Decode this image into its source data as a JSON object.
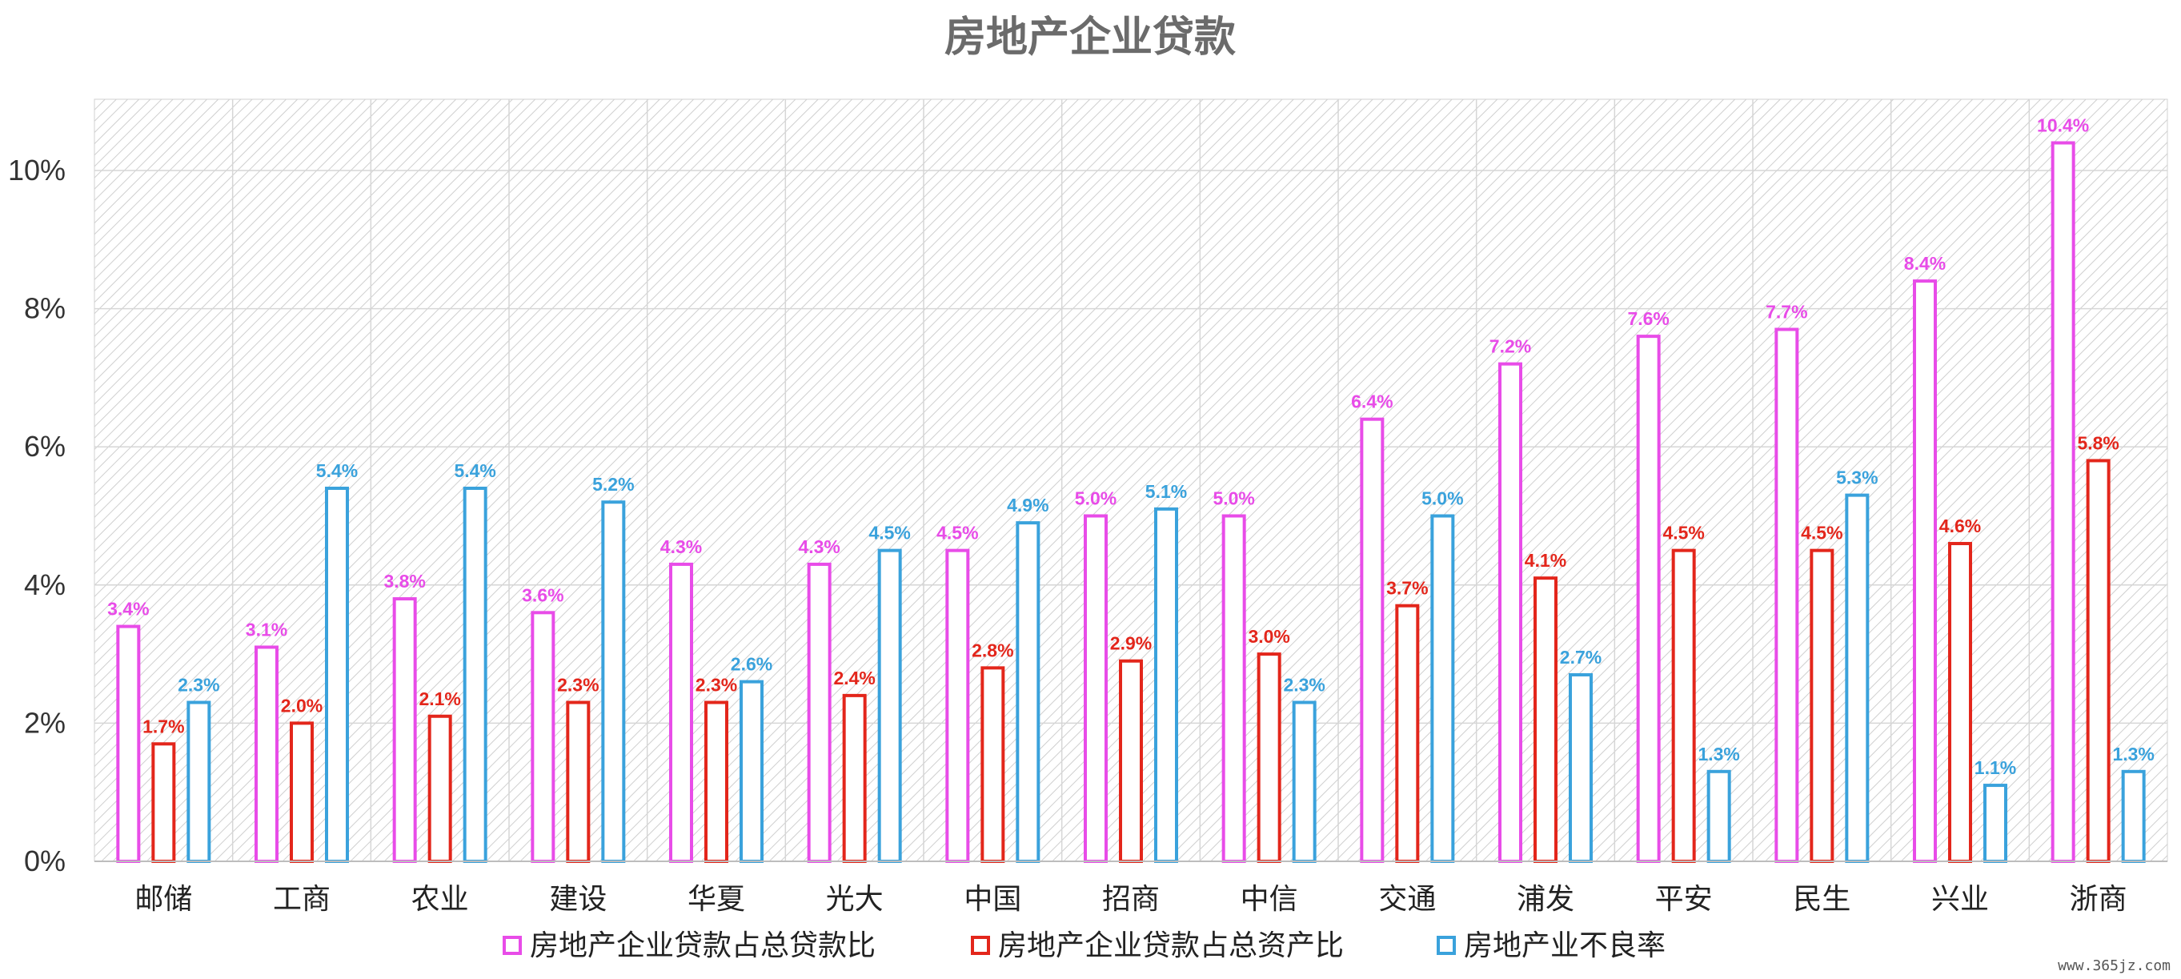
{
  "chart_data": {
    "type": "bar",
    "title": "房地产企业贷款",
    "categories": [
      "邮储",
      "工商",
      "农业",
      "建设",
      "华夏",
      "光大",
      "中国",
      "招商",
      "中信",
      "交通",
      "浦发",
      "平安",
      "民生",
      "兴业",
      "浙商"
    ],
    "series": [
      {
        "name": "房地产企业贷款占总贷款比",
        "color": "#e84ce8",
        "values": [
          3.4,
          3.1,
          3.8,
          3.6,
          4.3,
          4.3,
          4.5,
          5.0,
          5.0,
          6.4,
          7.2,
          7.6,
          7.7,
          8.4,
          10.4
        ],
        "labels": [
          "3.4%",
          "3.1%",
          "3.8%",
          "3.6%",
          "4.3%",
          "4.3%",
          "4.5%",
          "5.0%",
          "5.0%",
          "6.4%",
          "7.2%",
          "7.6%",
          "7.7%",
          "8.4%",
          "10.4%"
        ]
      },
      {
        "name": "房地产企业贷款占总资产比",
        "color": "#e3261b",
        "values": [
          1.7,
          2.0,
          2.1,
          2.3,
          2.3,
          2.4,
          2.8,
          2.9,
          3.0,
          3.7,
          4.1,
          4.5,
          4.5,
          4.6,
          5.8
        ],
        "labels": [
          "1.7%",
          "2.0%",
          "2.1%",
          "2.3%",
          "2.3%",
          "2.4%",
          "2.8%",
          "2.9%",
          "3.0%",
          "3.7%",
          "4.1%",
          "4.5%",
          "4.5%",
          "4.6%",
          "5.8%"
        ]
      },
      {
        "name": "房地产业不良率",
        "color": "#3aa2dc",
        "values": [
          2.3,
          5.4,
          5.4,
          5.2,
          2.6,
          4.5,
          4.9,
          5.1,
          2.3,
          5.0,
          2.7,
          1.3,
          5.3,
          1.1,
          1.3
        ],
        "labels": [
          "2.3%",
          "5.4%",
          "5.4%",
          "5.2%",
          "2.6%",
          "4.5%",
          "4.9%",
          "5.1%",
          "2.3%",
          "5.0%",
          "2.7%",
          "1.3%",
          "5.3%",
          "1.1%",
          "1.3%"
        ]
      }
    ],
    "yticks": [
      "0%",
      "2%",
      "4%",
      "6%",
      "8%",
      "10%"
    ],
    "ylim": [
      0,
      11
    ],
    "grid": true,
    "legend": "bottom-center"
  },
  "watermark": "www.365jz.com"
}
